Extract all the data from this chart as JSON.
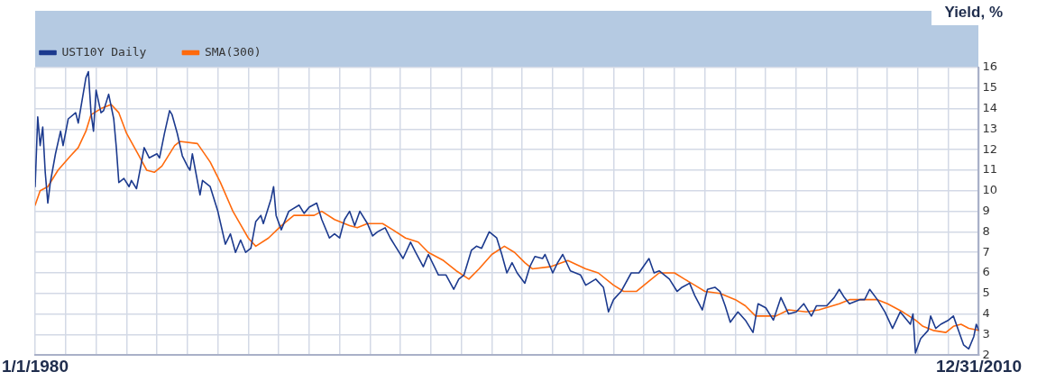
{
  "chart_data": {
    "type": "line",
    "ylabel": "Yield, %",
    "xlim": [
      "1980-01-01",
      "2010-12-31"
    ],
    "xticks": [
      {
        "value": "1980-01-01",
        "label": "1/1/1980"
      },
      {
        "value": "1981-01-01",
        "label": null
      },
      {
        "value": "1982-01-01",
        "label": null
      },
      {
        "value": "1983-01-01",
        "label": null
      },
      {
        "value": "1984-01-01",
        "label": null
      },
      {
        "value": "1985-01-01",
        "label": null
      },
      {
        "value": "1986-01-01",
        "label": null
      },
      {
        "value": "1987-01-01",
        "label": null
      },
      {
        "value": "1988-01-01",
        "label": null
      },
      {
        "value": "1989-01-01",
        "label": null
      },
      {
        "value": "1990-01-01",
        "label": null
      },
      {
        "value": "1991-01-01",
        "label": null
      },
      {
        "value": "1992-01-01",
        "label": null
      },
      {
        "value": "1993-01-01",
        "label": null
      },
      {
        "value": "1994-01-01",
        "label": null
      },
      {
        "value": "1995-01-01",
        "label": null
      },
      {
        "value": "1996-01-01",
        "label": null
      },
      {
        "value": "1997-01-01",
        "label": null
      },
      {
        "value": "1998-01-01",
        "label": null
      },
      {
        "value": "1999-01-01",
        "label": null
      },
      {
        "value": "2000-01-01",
        "label": null
      },
      {
        "value": "2001-01-01",
        "label": null
      },
      {
        "value": "2002-01-01",
        "label": null
      },
      {
        "value": "2003-01-01",
        "label": null
      },
      {
        "value": "2004-01-01",
        "label": null
      },
      {
        "value": "2005-01-01",
        "label": null
      },
      {
        "value": "2006-01-01",
        "label": null
      },
      {
        "value": "2007-01-01",
        "label": null
      },
      {
        "value": "2008-01-01",
        "label": null
      },
      {
        "value": "2009-01-01",
        "label": null
      },
      {
        "value": "2010-01-01",
        "label": null
      },
      {
        "value": "2010-12-31",
        "label": "12/31/2010"
      }
    ],
    "ylim": [
      2,
      16
    ],
    "yticks": [
      2,
      3,
      4,
      5,
      6,
      7,
      8,
      9,
      10,
      11,
      12,
      13,
      14,
      15,
      16
    ],
    "grid": true,
    "legend": "top left",
    "marker": "none",
    "line_style": "solid",
    "series": [
      {
        "name": "UST10Y Daily",
        "color": "#1c3a8e",
        "x": [
          "1980-01",
          "1980-02",
          "1980-03",
          "1980-04",
          "1980-05",
          "1980-06",
          "1980-07",
          "1980-09",
          "1980-11",
          "1980-12",
          "1981-02",
          "1981-05",
          "1981-06",
          "1981-09",
          "1981-10",
          "1981-11",
          "1981-12",
          "1982-01",
          "1982-03",
          "1982-04",
          "1982-06",
          "1982-08",
          "1982-09",
          "1982-10",
          "1982-12",
          "1983-02",
          "1983-03",
          "1983-05",
          "1983-07",
          "1983-08",
          "1983-10",
          "1984-01",
          "1984-02",
          "1984-04",
          "1984-06",
          "1984-07",
          "1984-09",
          "1984-11",
          "1985-01",
          "1985-02",
          "1985-03",
          "1985-06",
          "1985-07",
          "1985-10",
          "1986-01",
          "1986-04",
          "1986-06",
          "1986-08",
          "1986-10",
          "1986-12",
          "1987-02",
          "1987-04",
          "1987-06",
          "1987-07",
          "1987-10",
          "1987-11",
          "1987-12",
          "1988-02",
          "1988-05",
          "1988-09",
          "1988-11",
          "1989-01",
          "1989-04",
          "1989-06",
          "1989-09",
          "1989-11",
          "1990-01",
          "1990-03",
          "1990-05",
          "1990-07",
          "1990-09",
          "1990-12",
          "1991-02",
          "1991-04",
          "1991-07",
          "1991-09",
          "1991-11",
          "1992-02",
          "1992-05",
          "1992-07",
          "1992-10",
          "1992-12",
          "1993-04",
          "1993-07",
          "1993-10",
          "1993-12",
          "1994-02",
          "1994-05",
          "1994-07",
          "1994-09",
          "1994-12",
          "1995-03",
          "1995-05",
          "1995-07",
          "1995-09",
          "1995-11",
          "1996-02",
          "1996-04",
          "1996-06",
          "1996-09",
          "1996-10",
          "1997-01",
          "1997-03",
          "1997-05",
          "1997-08",
          "1997-12",
          "1998-02",
          "1998-06",
          "1998-09",
          "1998-11",
          "1999-01",
          "1999-04",
          "1999-08",
          "1999-11",
          "2000-03",
          "2000-05",
          "2000-07",
          "2000-11",
          "2001-02",
          "2001-04",
          "2001-07",
          "2001-09",
          "2001-12",
          "2002-02",
          "2002-05",
          "2002-07",
          "2002-09",
          "2002-11",
          "2003-02",
          "2003-05",
          "2003-08",
          "2003-10",
          "2004-01",
          "2004-04",
          "2004-07",
          "2004-10",
          "2005-01",
          "2005-04",
          "2005-07",
          "2005-09",
          "2006-01",
          "2006-04",
          "2006-06",
          "2006-08",
          "2006-10",
          "2007-02",
          "2007-04",
          "2007-06",
          "2007-09",
          "2007-12",
          "2008-03",
          "2008-06",
          "2008-10",
          "2008-11",
          "2008-12",
          "2009-02",
          "2009-05",
          "2009-06",
          "2009-08",
          "2009-10",
          "2010-01",
          "2010-03",
          "2010-05",
          "2010-07",
          "2010-09",
          "2010-11",
          "2010-12",
          "2010-12-31"
        ],
        "values": [
          10.2,
          13.6,
          12.2,
          13.1,
          10.9,
          9.4,
          10.4,
          11.8,
          12.9,
          12.2,
          13.5,
          13.8,
          13.3,
          15.5,
          15.8,
          13.8,
          12.9,
          14.9,
          13.8,
          13.9,
          14.7,
          13.5,
          12.1,
          10.4,
          10.6,
          10.2,
          10.5,
          10.1,
          11.4,
          12.1,
          11.6,
          11.8,
          11.6,
          12.8,
          13.9,
          13.7,
          12.8,
          11.7,
          11.2,
          11.0,
          11.8,
          9.8,
          10.5,
          10.2,
          9.0,
          7.4,
          7.9,
          7.0,
          7.6,
          7.0,
          7.2,
          8.5,
          8.8,
          8.4,
          9.6,
          10.2,
          8.8,
          8.1,
          9.0,
          9.3,
          8.9,
          9.2,
          9.4,
          8.6,
          7.7,
          7.9,
          7.7,
          8.6,
          9.0,
          8.3,
          9.0,
          8.4,
          7.8,
          8.0,
          8.2,
          7.7,
          7.3,
          6.7,
          7.5,
          7.0,
          6.3,
          6.9,
          5.9,
          5.9,
          5.2,
          5.7,
          5.9,
          7.1,
          7.3,
          7.2,
          8.0,
          7.7,
          6.9,
          6.0,
          6.5,
          6.0,
          5.5,
          6.3,
          6.8,
          6.7,
          6.9,
          6.0,
          6.5,
          6.9,
          6.1,
          5.9,
          5.4,
          5.7,
          5.3,
          4.1,
          4.7,
          5.1,
          6.0,
          6.0,
          6.7,
          6.0,
          6.1,
          5.7,
          5.1,
          5.3,
          5.5,
          4.9,
          4.2,
          5.2,
          5.3,
          5.1,
          4.4,
          3.6,
          4.1,
          3.7,
          3.1,
          4.5,
          4.3,
          3.7,
          4.8,
          4.0,
          4.1,
          4.5,
          3.9,
          4.4,
          4.4,
          4.8,
          5.2,
          4.8,
          4.5,
          4.7,
          4.7,
          5.2,
          4.7,
          4.1,
          3.3,
          4.1,
          3.5,
          4.0,
          2.1,
          2.8,
          3.2,
          3.9,
          3.3,
          3.5,
          3.7,
          3.9,
          3.2,
          2.5,
          2.3,
          2.9,
          3.5,
          3.2
        ]
      },
      {
        "name": "SMA(300)",
        "color": "#ff6a0d",
        "x": [
          "1980-01",
          "1980-03",
          "1980-06",
          "1980-10",
          "1981-03",
          "1981-06",
          "1981-09",
          "1981-11",
          "1982-03",
          "1982-07",
          "1982-10",
          "1983-01",
          "1983-06",
          "1983-09",
          "1983-12",
          "1984-03",
          "1984-08",
          "1984-10",
          "1985-05",
          "1985-10",
          "1986-02",
          "1986-07",
          "1987-01",
          "1987-04",
          "1987-09",
          "1988-02",
          "1988-07",
          "1988-11",
          "1989-03",
          "1989-06",
          "1989-11",
          "1990-05",
          "1990-08",
          "1990-12",
          "1991-06",
          "1991-10",
          "1992-03",
          "1992-08",
          "1992-12",
          "1993-06",
          "1993-11",
          "1994-04",
          "1994-08",
          "1995-01",
          "1995-06",
          "1995-10",
          "1996-02",
          "1996-05",
          "1996-12",
          "1997-07",
          "1998-02",
          "1998-07",
          "1999-01",
          "1999-05",
          "1999-10",
          "2000-03",
          "2000-07",
          "2001-01",
          "2001-05",
          "2001-09",
          "2002-01",
          "2002-07",
          "2003-01",
          "2003-05",
          "2003-09",
          "2004-01",
          "2004-05",
          "2004-10",
          "2005-05",
          "2005-10",
          "2006-06",
          "2006-10",
          "2007-04",
          "2007-09",
          "2008-01",
          "2008-07",
          "2008-12",
          "2009-03",
          "2009-07",
          "2009-12",
          "2010-03",
          "2010-06",
          "2010-09",
          "2010-12-31"
        ],
        "values": [
          9.3,
          10.0,
          10.2,
          11.0,
          11.7,
          12.1,
          12.9,
          13.7,
          14.0,
          14.2,
          13.8,
          12.8,
          11.7,
          11.0,
          10.9,
          11.2,
          12.2,
          12.4,
          12.3,
          11.4,
          10.4,
          9.0,
          7.7,
          7.3,
          7.7,
          8.3,
          8.8,
          8.8,
          8.8,
          9.0,
          8.6,
          8.3,
          8.2,
          8.4,
          8.4,
          8.1,
          7.7,
          7.5,
          7.0,
          6.6,
          6.1,
          5.7,
          6.2,
          6.9,
          7.3,
          7.0,
          6.5,
          6.2,
          6.3,
          6.6,
          6.2,
          6.0,
          5.4,
          5.1,
          5.1,
          5.6,
          6.0,
          6.0,
          5.7,
          5.4,
          5.1,
          5.0,
          4.7,
          4.4,
          3.9,
          3.9,
          3.9,
          4.2,
          4.1,
          4.2,
          4.5,
          4.7,
          4.7,
          4.7,
          4.5,
          4.1,
          3.7,
          3.4,
          3.2,
          3.1,
          3.4,
          3.5,
          3.3,
          3.2
        ]
      }
    ]
  }
}
